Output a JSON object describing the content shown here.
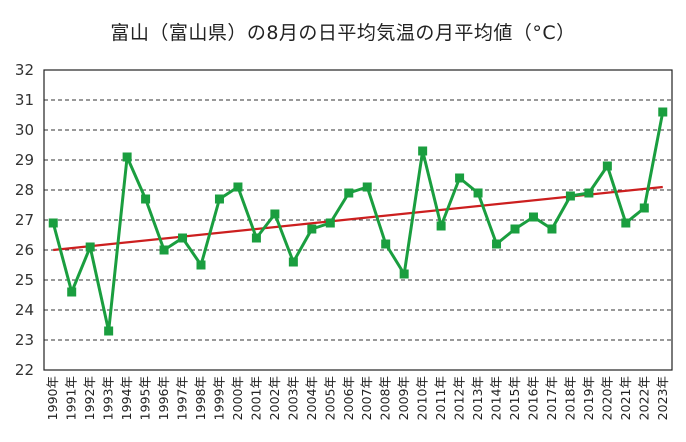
{
  "chart_data": {
    "type": "line",
    "title": "富山（富山県）の8月の日平均気温の月平均値（°C）",
    "xlabel": "",
    "ylabel": "",
    "ylim": [
      22,
      32
    ],
    "yticks": [
      22,
      23,
      24,
      25,
      26,
      27,
      28,
      29,
      30,
      31,
      32
    ],
    "grid": true,
    "categories": [
      "1990年",
      "1991年",
      "1992年",
      "1993年",
      "1994年",
      "1995年",
      "1996年",
      "1997年",
      "1998年",
      "1999年",
      "2000年",
      "2001年",
      "2002年",
      "2003年",
      "2004年",
      "2005年",
      "2006年",
      "2007年",
      "2008年",
      "2009年",
      "2010年",
      "2011年",
      "2012年",
      "2013年",
      "2014年",
      "2015年",
      "2016年",
      "2017年",
      "2018年",
      "2019年",
      "2020年",
      "2021年",
      "2022年",
      "2023年"
    ],
    "series": [
      {
        "values": [
          26.9,
          24.6,
          26.1,
          23.3,
          29.1,
          27.7,
          26.0,
          26.4,
          25.5,
          27.7,
          28.1,
          26.4,
          27.2,
          25.6,
          26.7,
          26.9,
          27.9,
          28.1,
          26.2,
          25.2,
          29.3,
          26.8,
          28.4,
          27.9,
          26.2,
          26.7,
          27.1,
          26.7,
          27.8,
          27.9,
          28.8,
          26.9,
          27.4,
          30.6
        ],
        "color": "#1a9e3f",
        "marker": "square"
      }
    ],
    "trendline": {
      "start": 26.0,
      "end": 28.1,
      "color": "#cc1f1f"
    }
  }
}
